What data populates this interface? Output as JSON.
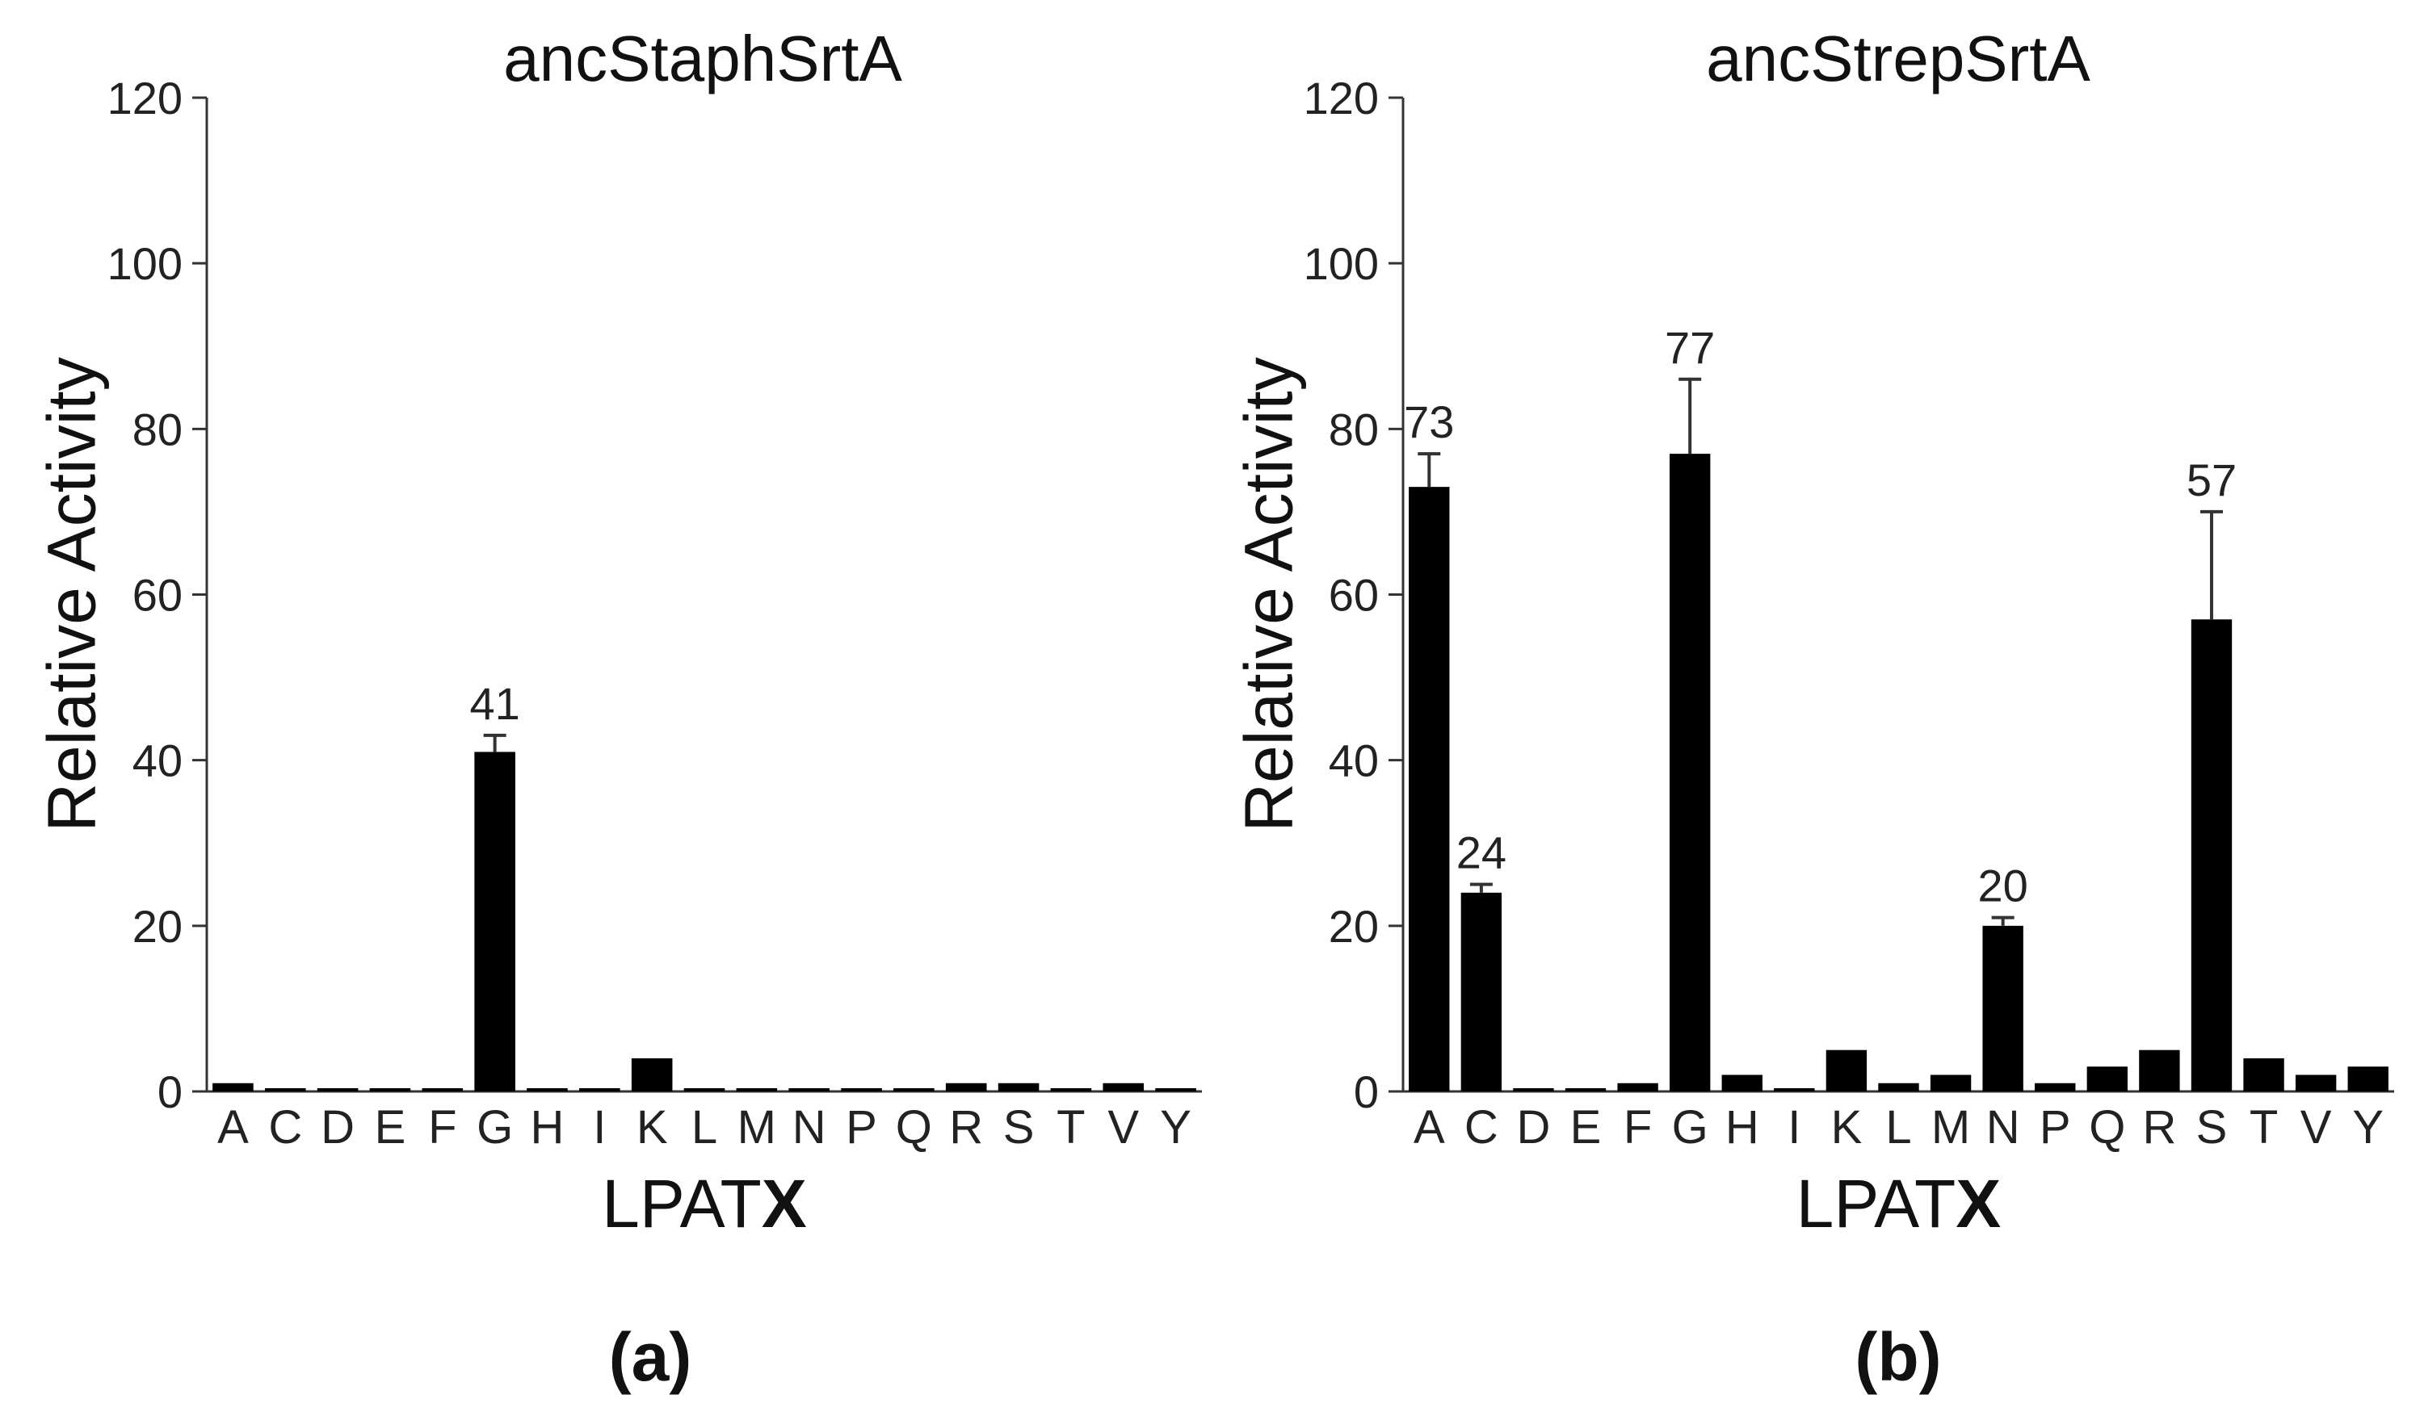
{
  "chart_data": [
    {
      "type": "bar",
      "panel_label": "(a)",
      "title": "ancStaphSrtA",
      "xlabel_prefix": "LPAT",
      "xlabel_suffix": "X",
      "ylabel": "Relative Activity",
      "ylim": [
        0,
        120
      ],
      "yticks": [
        "0",
        "20",
        "40",
        "60",
        "80",
        "100",
        "120"
      ],
      "categories": [
        "A",
        "C",
        "D",
        "E",
        "F",
        "G",
        "H",
        "I",
        "K",
        "L",
        "M",
        "N",
        "P",
        "Q",
        "R",
        "S",
        "T",
        "V",
        "Y"
      ],
      "values": [
        1,
        0.3,
        0.3,
        0.3,
        0.3,
        41,
        0.3,
        0.3,
        4,
        0.3,
        0.3,
        0.3,
        0.3,
        0.3,
        1,
        1,
        0.3,
        1,
        0.3
      ],
      "errors": [
        0,
        0,
        0,
        0,
        0,
        2,
        0,
        0,
        0,
        0,
        0,
        0,
        0,
        0,
        0,
        0,
        0,
        0,
        0
      ],
      "data_labels": [
        "",
        "",
        "",
        "",
        "",
        "41",
        "",
        "",
        "",
        "",
        "",
        "",
        "",
        "",
        "",
        "",
        "",
        "",
        ""
      ]
    },
    {
      "type": "bar",
      "panel_label": "(b)",
      "title": "ancStrepSrtA",
      "xlabel_prefix": "LPAT",
      "xlabel_suffix": "X",
      "ylabel": "Relative Activity",
      "ylim": [
        0,
        120
      ],
      "yticks": [
        "0",
        "20",
        "40",
        "60",
        "80",
        "100",
        "120"
      ],
      "categories": [
        "A",
        "C",
        "D",
        "E",
        "F",
        "G",
        "H",
        "I",
        "K",
        "L",
        "M",
        "N",
        "P",
        "Q",
        "R",
        "S",
        "T",
        "V",
        "Y"
      ],
      "values": [
        73,
        24,
        0.3,
        0.3,
        1,
        77,
        2,
        0.3,
        5,
        1,
        2,
        20,
        1,
        3,
        5,
        57,
        4,
        2,
        3
      ],
      "errors": [
        4,
        1,
        0,
        0,
        0,
        9,
        0,
        0,
        0,
        0,
        0,
        1,
        0,
        0,
        0,
        13,
        0,
        0,
        0
      ],
      "data_labels": [
        "73",
        "24",
        "",
        "",
        "",
        "77",
        "",
        "",
        "",
        "",
        "",
        "20",
        "",
        "",
        "",
        "57",
        "",
        "",
        ""
      ]
    }
  ]
}
